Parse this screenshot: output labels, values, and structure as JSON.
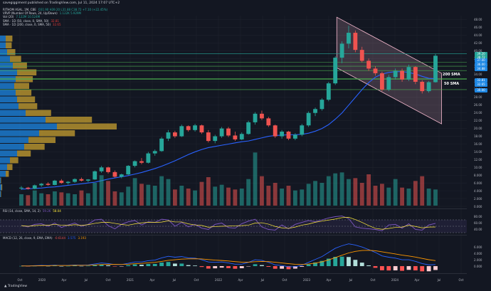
{
  "header": {
    "text": "savegiggiment published on TradingView.com, Jul 11, 2024 17:07 UTC+2"
  },
  "legend": {
    "rows": [
      {
        "label": "RITHOM ASAL, 1M, CBE",
        "values": "O31.90  H39.20  L31.88  C38.72  +7.10 (+22.45%)",
        "tone": "g"
      },
      {
        "label": "VRVP (Number Of Rows, 24, Up/Down)",
        "values": "1.122K  5.929M",
        "tone": "g"
      },
      {
        "label": "Vol (20)",
        "values": "7.122M  10.524M",
        "tone": "g"
      },
      {
        "label": "SMA · 1D (50, close, 0, SMA, 50)",
        "values": "32.81",
        "tone": "v"
      },
      {
        "label": "SMA · 1D (200, close, 0, SMA, 50)",
        "values": "32.65",
        "tone": "v"
      }
    ]
  },
  "rsi_label": {
    "label": "RSI (14, close, SMA, 14, 2)",
    "v1": "59.26",
    "v2": "58.04"
  },
  "macd_label": {
    "label": "MACD (12, 26, close, 9, EMA, EMA)",
    "v1": "-0.6144",
    "v2": "3.575",
    "v3": "3.193"
  },
  "price_axis": [
    "48.00",
    "46.00",
    "44.00",
    "42.00",
    "40.00",
    "38.00",
    "36.00",
    "34.00",
    "32.00",
    "30.00",
    "28.00",
    "26.00",
    "24.00",
    "22.00",
    "20.00",
    "18.00",
    "16.00",
    "14.00",
    "12.00",
    "10.00",
    "8.000",
    "6.000",
    "4.000",
    "2.000",
    "0.000"
  ],
  "rsi_axis": [
    "80.00",
    "60.00",
    "40.00"
  ],
  "macd_axis": [
    "6.000",
    "4.000",
    "2.000",
    "0.000"
  ],
  "price_tags": [
    {
      "text": "39.20",
      "color": "#26a69a",
      "price": 39.2
    },
    {
      "text": "38.72",
      "color": "#26a69a",
      "price": 38.3
    },
    {
      "text": "37.00",
      "color": "#1e88e5",
      "price": 37.4
    },
    {
      "text": "36.00",
      "color": "#1e88e5",
      "price": 36.4
    },
    {
      "text": "34.88",
      "color": "#1e88e5",
      "price": 35.3
    },
    {
      "text": "32.81",
      "color": "#1e88e5",
      "price": 32.3
    },
    {
      "text": "32.65",
      "color": "#1e88e5",
      "price": 31.3
    },
    {
      "text": "30.00",
      "color": "#1e88e5",
      "price": 29.8
    }
  ],
  "annotations": {
    "sma200": "200 SMA",
    "sma50": "50 SMA"
  },
  "x_axis": [
    "Oct",
    "2020",
    "Apr",
    "Jul",
    "Oct",
    "2021",
    "Apr",
    "Jul",
    "Oct",
    "2022",
    "Apr",
    "Jul",
    "Oct",
    "2023",
    "Apr",
    "Jul",
    "Oct",
    "2024",
    "Apr",
    "Jul",
    "Oct"
  ],
  "footer": "TradingView",
  "colors": {
    "up": "#26a69a",
    "down": "#ef5350",
    "sma50": "#2962ff",
    "sma200": "#ffffff",
    "channel": "#f8bbd0",
    "vp_up": "#1e88e5",
    "vp_down": "#c8a030"
  },
  "chart_data": {
    "type": "candlestick",
    "candles": [
      [
        4.6,
        5.2,
        4.2,
        4.8
      ],
      [
        4.8,
        5.0,
        4.3,
        4.5
      ],
      [
        4.5,
        5.6,
        4.4,
        5.4
      ],
      [
        5.4,
        6.0,
        5.0,
        5.8
      ],
      [
        5.8,
        6.2,
        5.3,
        5.5
      ],
      [
        5.5,
        6.8,
        5.4,
        6.6
      ],
      [
        6.6,
        7.0,
        5.8,
        6.0
      ],
      [
        6.0,
        6.5,
        5.6,
        6.3
      ],
      [
        6.3,
        7.2,
        6.0,
        7.0
      ],
      [
        7.0,
        7.4,
        6.4,
        6.6
      ],
      [
        6.6,
        7.0,
        6.2,
        6.9
      ],
      [
        6.9,
        9.2,
        6.8,
        9.0
      ],
      [
        9.0,
        10.4,
        8.6,
        10.0
      ],
      [
        10.0,
        10.2,
        8.4,
        8.8
      ],
      [
        8.8,
        9.2,
        7.4,
        7.6
      ],
      [
        7.6,
        8.4,
        7.2,
        8.2
      ],
      [
        8.2,
        10.6,
        8.0,
        10.4
      ],
      [
        10.4,
        11.8,
        10.0,
        11.6
      ],
      [
        11.6,
        12.4,
        10.8,
        11.2
      ],
      [
        11.2,
        14.0,
        11.0,
        13.6
      ],
      [
        13.6,
        14.6,
        13.0,
        14.2
      ],
      [
        14.2,
        17.8,
        14.0,
        17.4
      ],
      [
        17.4,
        19.6,
        16.8,
        19.0
      ],
      [
        19.0,
        19.4,
        17.6,
        18.0
      ],
      [
        18.0,
        21.0,
        17.8,
        20.6
      ],
      [
        20.6,
        20.8,
        19.2,
        19.6
      ],
      [
        19.6,
        21.2,
        19.2,
        20.8
      ],
      [
        20.8,
        21.0,
        18.6,
        19.0
      ],
      [
        19.0,
        19.6,
        16.4,
        16.8
      ],
      [
        16.8,
        18.4,
        16.2,
        18.0
      ],
      [
        18.0,
        20.4,
        17.6,
        20.0
      ],
      [
        20.0,
        20.4,
        17.8,
        18.2
      ],
      [
        18.2,
        19.2,
        16.8,
        17.2
      ],
      [
        17.2,
        19.0,
        17.0,
        18.6
      ],
      [
        18.6,
        22.0,
        18.4,
        21.6
      ],
      [
        21.6,
        24.2,
        21.0,
        23.8
      ],
      [
        23.8,
        24.6,
        22.2,
        22.6
      ],
      [
        22.6,
        23.0,
        20.4,
        20.8
      ],
      [
        20.8,
        21.0,
        17.6,
        18.0
      ],
      [
        18.0,
        19.6,
        17.4,
        19.2
      ],
      [
        19.2,
        19.4,
        17.0,
        17.4
      ],
      [
        17.4,
        18.8,
        17.0,
        18.4
      ],
      [
        18.4,
        21.2,
        18.0,
        20.8
      ],
      [
        20.8,
        24.4,
        20.4,
        24.0
      ],
      [
        24.0,
        25.4,
        23.2,
        25.0
      ],
      [
        25.0,
        27.8,
        24.6,
        27.4
      ],
      [
        27.4,
        32.0,
        27.0,
        31.6
      ],
      [
        31.6,
        38.6,
        31.2,
        38.2
      ],
      [
        38.2,
        42.4,
        36.8,
        41.8
      ],
      [
        41.8,
        46.4,
        40.6,
        44.6
      ],
      [
        44.6,
        45.2,
        39.6,
        40.2
      ],
      [
        40.2,
        41.0,
        37.0,
        37.4
      ],
      [
        37.4,
        38.0,
        34.8,
        35.4
      ],
      [
        35.4,
        36.0,
        33.6,
        34.2
      ],
      [
        34.2,
        34.6,
        29.6,
        30.0
      ],
      [
        30.0,
        33.8,
        29.6,
        33.2
      ],
      [
        33.2,
        35.4,
        32.6,
        34.8
      ],
      [
        34.8,
        35.4,
        32.0,
        32.6
      ],
      [
        32.6,
        36.4,
        32.2,
        35.8
      ],
      [
        35.8,
        36.0,
        31.4,
        32.0
      ],
      [
        32.0,
        32.4,
        29.0,
        29.6
      ],
      [
        29.6,
        32.2,
        29.2,
        31.9
      ],
      [
        31.9,
        39.2,
        31.8,
        38.7
      ]
    ],
    "volume": [
      2.4,
      2.2,
      3.2,
      2.6,
      2.4,
      3.0,
      2.8,
      2.6,
      2.4,
      3.2,
      2.6,
      4.8,
      6.4,
      5.2,
      3.0,
      2.8,
      4.0,
      5.8,
      4.6,
      4.4,
      4.2,
      6.2,
      5.6,
      3.4,
      4.2,
      3.6,
      3.2,
      5.0,
      6.0,
      4.0,
      4.4,
      3.8,
      3.4,
      3.6,
      5.6,
      11.2,
      6.2,
      4.2,
      4.8,
      3.6,
      4.2,
      3.2,
      3.4,
      4.6,
      5.2,
      4.8,
      6.2,
      6.8,
      7.0,
      5.6,
      5.8,
      4.8,
      6.6,
      4.2,
      4.6,
      3.8,
      5.6,
      3.8,
      3.6,
      5.2,
      6.2,
      3.6,
      3.4
    ],
    "volume_up": [
      true,
      false,
      true,
      true,
      false,
      true,
      false,
      true,
      true,
      false,
      true,
      true,
      true,
      false,
      false,
      true,
      true,
      true,
      false,
      true,
      true,
      true,
      true,
      false,
      true,
      false,
      true,
      false,
      false,
      true,
      true,
      false,
      false,
      true,
      true,
      true,
      false,
      false,
      false,
      true,
      false,
      true,
      true,
      true,
      true,
      true,
      true,
      true,
      true,
      true,
      false,
      false,
      false,
      false,
      false,
      true,
      true,
      false,
      true,
      false,
      false,
      true,
      true
    ],
    "sma50": [
      4.4,
      4.5,
      4.6,
      4.7,
      4.9,
      5.0,
      5.2,
      5.4,
      5.6,
      5.8,
      6.0,
      6.2,
      6.6,
      7.0,
      7.3,
      7.6,
      7.9,
      8.3,
      8.7,
      9.2,
      9.7,
      10.3,
      11.0,
      11.7,
      12.5,
      13.3,
      14.0,
      14.6,
      15.1,
      15.4,
      15.7,
      16.0,
      16.3,
      16.6,
      16.8,
      17.2,
      17.6,
      18.0,
      18.2,
      18.3,
      18.4,
      18.4,
      18.5,
      18.8,
      19.3,
      20.0,
      21.0,
      22.4,
      24.0,
      26.0,
      28.0,
      30.0,
      31.8,
      33.2,
      34.0,
      34.4,
      34.6,
      34.6,
      34.4,
      34.0,
      33.4,
      32.9,
      32.8
    ],
    "price_axis_range": [
      0,
      49
    ],
    "rsi": [
      52,
      48,
      56,
      58,
      50,
      60,
      46,
      54,
      60,
      50,
      56,
      70,
      72,
      52,
      42,
      56,
      64,
      68,
      54,
      64,
      62,
      72,
      70,
      50,
      62,
      48,
      56,
      44,
      40,
      56,
      60,
      46,
      44,
      58,
      66,
      72,
      48,
      40,
      38,
      54,
      42,
      56,
      62,
      68,
      64,
      70,
      76,
      80,
      82,
      74,
      48,
      44,
      42,
      40,
      36,
      54,
      56,
      44,
      58,
      40,
      38,
      54,
      59
    ],
    "rsi_range": [
      30,
      90
    ],
    "macd": [
      0.1,
      0.05,
      0.15,
      0.25,
      0.2,
      0.3,
      0.2,
      0.25,
      0.35,
      0.3,
      0.35,
      0.7,
      1.0,
      0.8,
      0.5,
      0.5,
      0.9,
      1.3,
      1.3,
      1.7,
      1.9,
      2.6,
      3.1,
      2.8,
      3.0,
      2.6,
      2.5,
      2.0,
      1.3,
      1.2,
      1.3,
      1.0,
      0.6,
      0.6,
      1.2,
      2.0,
      1.8,
      1.2,
      0.4,
      0.2,
      -0.2,
      -0.2,
      0.3,
      1.2,
      2.1,
      3.0,
      4.3,
      5.6,
      6.4,
      7.0,
      6.6,
      6.0,
      5.2,
      4.3,
      3.2,
      2.8,
      2.5,
      2.0,
      2.0,
      1.5,
      0.8,
      0.4,
      0.5
    ],
    "macd_signal": [
      0.05,
      0.06,
      0.08,
      0.12,
      0.14,
      0.18,
      0.19,
      0.2,
      0.23,
      0.25,
      0.27,
      0.36,
      0.49,
      0.55,
      0.54,
      0.53,
      0.61,
      0.75,
      0.86,
      1.03,
      1.2,
      1.48,
      1.8,
      2.0,
      2.2,
      2.28,
      2.32,
      2.26,
      2.07,
      1.89,
      1.77,
      1.62,
      1.42,
      1.26,
      1.25,
      1.4,
      1.48,
      1.42,
      1.22,
      1.01,
      0.77,
      0.58,
      0.52,
      0.66,
      0.95,
      1.36,
      1.95,
      2.68,
      3.42,
      4.14,
      4.63,
      4.9,
      4.96,
      4.83,
      4.5,
      4.16,
      3.83,
      3.46,
      3.17,
      2.84,
      2.43,
      2.02,
      1.72
    ],
    "macd_range": [
      -2.0,
      7.6
    ]
  }
}
